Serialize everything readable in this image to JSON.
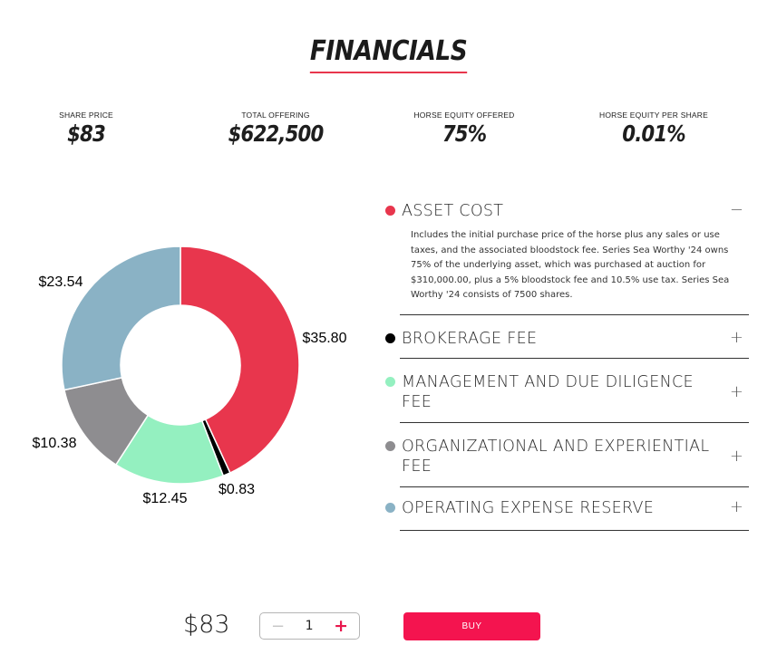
{
  "header": {
    "title": "FINANCIALS",
    "accent_color": "#e8364d"
  },
  "stats": [
    {
      "label": "SHARE PRICE",
      "value": "$83"
    },
    {
      "label": "TOTAL OFFERING",
      "value": "$622,500"
    },
    {
      "label": "HORSE EQUITY OFFERED",
      "value": "75%"
    },
    {
      "label": "HORSE EQUITY PER SHARE",
      "value": "0.01%"
    }
  ],
  "chart_data": {
    "type": "pie",
    "donut": true,
    "slices": [
      {
        "name": "ASSET COST",
        "value": 35.8,
        "label": "$35.80",
        "color": "#e8364d"
      },
      {
        "name": "BROKERAGE FEE",
        "value": 0.83,
        "label": "$0.83",
        "color": "#000000"
      },
      {
        "name": "MANAGEMENT AND DUE DILIGENCE FEE",
        "value": 12.45,
        "label": "$12.45",
        "color": "#94f0c0"
      },
      {
        "name": "ORGANIZATIONAL AND EXPERIENTIAL FEE",
        "value": 10.38,
        "label": "$10.38",
        "color": "#8e8d90"
      },
      {
        "name": "OPERATING EXPENSE RESERVE",
        "value": 23.54,
        "label": "$23.54",
        "color": "#8ab2c5"
      }
    ]
  },
  "accordion": [
    {
      "title": "ASSET COST",
      "color": "#e8364d",
      "expanded": true,
      "toggle": "−",
      "body": "Includes the initial purchase price of the horse plus any sales or use taxes, and the associated bloodstock fee. Series Sea Worthy '24 owns 75% of the underlying asset, which was purchased at auction for $310,000.00, plus a 5% bloodstock fee and 10.5% use tax. Series Sea Worthy '24 consists of 7500 shares."
    },
    {
      "title": "BROKERAGE FEE",
      "color": "#000000",
      "expanded": false,
      "toggle": "+"
    },
    {
      "title": "MANAGEMENT AND DUE DILIGENCE FEE",
      "color": "#94f0c0",
      "expanded": false,
      "toggle": "+"
    },
    {
      "title": "ORGANIZATIONAL AND EXPERIENTIAL FEE",
      "color": "#8e8d90",
      "expanded": false,
      "toggle": "+"
    },
    {
      "title": "OPERATING EXPENSE RESERVE",
      "color": "#8ab2c5",
      "expanded": false,
      "toggle": "+"
    }
  ],
  "purchase": {
    "price": "$83",
    "quantity": "1",
    "minus": "−",
    "plus": "+",
    "buy_label": "BUY",
    "buy_color": "#f4144f"
  }
}
